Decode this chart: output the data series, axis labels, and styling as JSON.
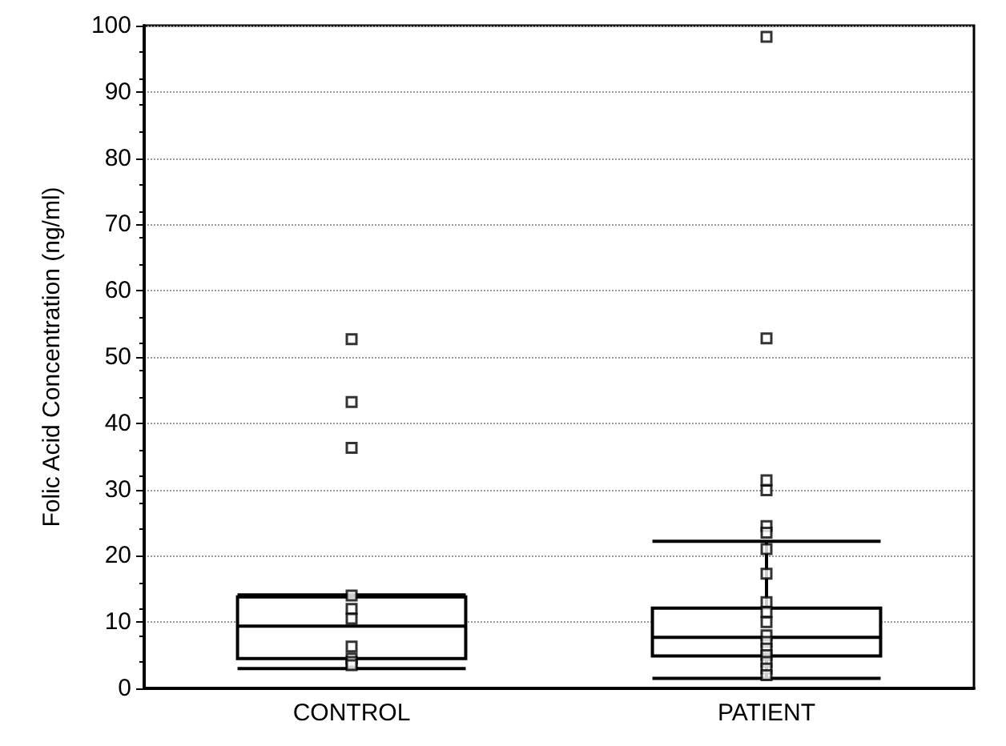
{
  "chart_data": {
    "type": "box",
    "ylabel": "Folic Acid Concentration (ng/ml)",
    "categories": [
      "CONTROL",
      "PATIENT"
    ],
    "boxes": [
      {
        "low": 3.0,
        "q1": 4.5,
        "median": 9.4,
        "q3": 13.8,
        "high": 14.1,
        "outliers": [
          36.3,
          43.2,
          52.7
        ]
      },
      {
        "low": 1.5,
        "q1": 4.9,
        "median": 7.7,
        "q3": 12.1,
        "high": 22.2,
        "outliers": [
          29.9,
          31.4,
          52.8,
          98.3
        ]
      }
    ],
    "series": [
      {
        "type": "scatter",
        "color": "#000000",
        "x": [
          "CONTROL",
          "CONTROL",
          "CONTROL",
          "CONTROL",
          "CONTROL",
          "CONTROL",
          "CONTROL",
          "PATIENT",
          "PATIENT",
          "PATIENT",
          "PATIENT",
          "PATIENT",
          "PATIENT",
          "PATIENT",
          "PATIENT",
          "PATIENT",
          "PATIENT",
          "PATIENT",
          "PATIENT",
          "PATIENT",
          "PATIENT"
        ],
        "values": [
          14,
          12,
          10.5,
          6.3,
          4.5,
          4,
          3.5,
          24.5,
          23.5,
          21,
          17.3,
          13,
          11.5,
          10,
          8,
          7,
          6,
          5,
          4,
          3,
          2
        ]
      }
    ],
    "color": "#000000",
    "marker": "square",
    "ylim": [
      0,
      100
    ],
    "yticks": [
      0,
      10,
      20,
      30,
      40,
      50,
      60,
      70,
      80,
      90,
      100
    ],
    "grid": "y"
  }
}
